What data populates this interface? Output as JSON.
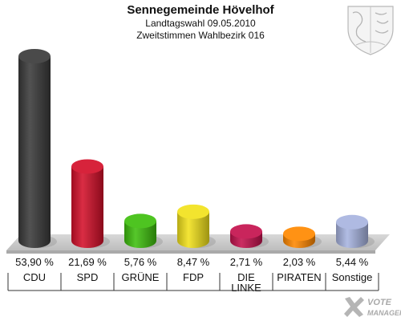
{
  "chart_data": {
    "type": "bar",
    "title": "Sennegemeinde Hövelhof",
    "subtitle_1": "Landtagswahl 09.05.2010",
    "subtitle_2": "Zweitstimmen Wahlbezirk 016",
    "categories": [
      [
        "CDU"
      ],
      [
        "SPD"
      ],
      [
        "GRÜNE"
      ],
      [
        "FDP"
      ],
      [
        "DIE",
        "LINKE"
      ],
      [
        "PIRATEN"
      ],
      [
        "Sonstige"
      ]
    ],
    "values": [
      53.9,
      21.69,
      5.76,
      8.47,
      2.71,
      2.03,
      5.44
    ],
    "value_labels": [
      "53,90 %",
      "21,69 %",
      "5,76 %",
      "8,47 %",
      "2,71 %",
      "2,03 %",
      "5,44 %"
    ],
    "colors": [
      "#3a3a3a",
      "#d4102a",
      "#3fbf0e",
      "#f2e21c",
      "#c4124e",
      "#ff8800",
      "#a8b4e0"
    ],
    "ylim": [
      0,
      55
    ],
    "grid": false,
    "legend": "none"
  },
  "branding": {
    "watermark_text": [
      "VOTE",
      "MANAGER"
    ],
    "crest_icon": "coat-of-arms-icon"
  }
}
